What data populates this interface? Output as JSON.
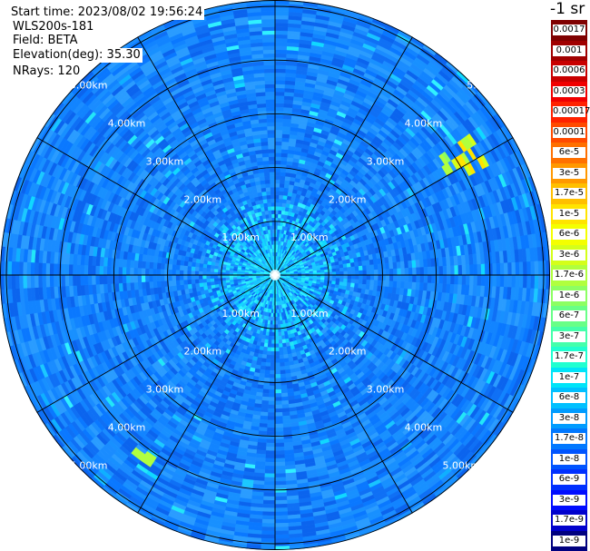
{
  "header": {
    "start_time": "Start time: 2023/08/02 19:56:24",
    "instrument": "WLS200s-181",
    "field": "Field: BETA",
    "elevation": "Elevation(deg): 35.30",
    "nrays": "NRays: 120"
  },
  "ring_labels": [
    "1.00km",
    "2.00km",
    "3.00km",
    "4.00km",
    "5.00km"
  ],
  "colorbar": {
    "title": "-1 sr",
    "levels": [
      {
        "label": "0.0017",
        "color": "#7f0000"
      },
      {
        "label": "0.001",
        "color": "#a00000"
      },
      {
        "label": "0.0006",
        "color": "#c80000"
      },
      {
        "label": "0.0003",
        "color": "#f00000"
      },
      {
        "label": "0.00017",
        "color": "#ff2200"
      },
      {
        "label": "0.0001",
        "color": "#ff4a00"
      },
      {
        "label": "6e-5",
        "color": "#ff7000"
      },
      {
        "label": "3e-5",
        "color": "#ff9800"
      },
      {
        "label": "1.7e-5",
        "color": "#ffbf00"
      },
      {
        "label": "1e-5",
        "color": "#ffe400"
      },
      {
        "label": "6e-6",
        "color": "#f4ff00"
      },
      {
        "label": "3e-6",
        "color": "#d4ff1a"
      },
      {
        "label": "1.7e-6",
        "color": "#b0ff3e"
      },
      {
        "label": "1e-6",
        "color": "#8cff63"
      },
      {
        "label": "6e-7",
        "color": "#68ff87"
      },
      {
        "label": "3e-7",
        "color": "#44ffab"
      },
      {
        "label": "1.7e-7",
        "color": "#20ffd0"
      },
      {
        "label": "1e-7",
        "color": "#00e4f8"
      },
      {
        "label": "6e-8",
        "color": "#00c0ff"
      },
      {
        "label": "3e-8",
        "color": "#009cff"
      },
      {
        "label": "1.7e-8",
        "color": "#0078ff"
      },
      {
        "label": "1e-8",
        "color": "#0054ff"
      },
      {
        "label": "6e-9",
        "color": "#0030ff"
      },
      {
        "label": "3e-9",
        "color": "#000cff"
      },
      {
        "label": "1.7e-9",
        "color": "#0000cc"
      },
      {
        "label": "1e-9",
        "color": "#00007f"
      }
    ]
  }
}
